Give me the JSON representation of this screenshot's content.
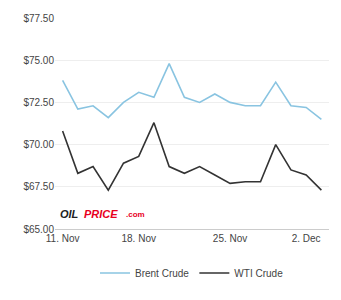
{
  "chart_data": {
    "type": "line",
    "categories": [
      "11. Nov",
      null,
      null,
      null,
      null,
      "18. Nov",
      null,
      null,
      null,
      null,
      null,
      "25. Nov",
      null,
      null,
      null,
      null,
      "2. Dec",
      null
    ],
    "series": [
      {
        "name": "Brent Crude",
        "color": "#89C4E1",
        "values": [
          73.8,
          72.1,
          72.3,
          71.6,
          72.5,
          73.1,
          72.8,
          74.8,
          72.8,
          72.5,
          73.0,
          72.5,
          72.3,
          72.3,
          73.7,
          72.3,
          72.2,
          71.5
        ]
      },
      {
        "name": "WTI Crude",
        "color": "#333333",
        "values": [
          70.8,
          68.3,
          68.7,
          67.3,
          68.9,
          69.3,
          71.3,
          68.7,
          68.3,
          68.7,
          68.2,
          67.7,
          67.8,
          67.8,
          70.0,
          68.5,
          68.2,
          67.3
        ]
      }
    ],
    "ylim": [
      65.0,
      77.5
    ],
    "yticks": [
      {
        "value": 65.0,
        "label": "$65.00"
      },
      {
        "value": 67.5,
        "label": "$67.50"
      },
      {
        "value": 70.0,
        "label": "$70.00"
      },
      {
        "value": 72.5,
        "label": "$72.50"
      },
      {
        "value": 75.0,
        "label": "$75.00"
      },
      {
        "value": 77.5,
        "label": "$77.50"
      }
    ],
    "grid": true,
    "legend": "bottom",
    "annotations": [
      {
        "text": "OIL",
        "color": "#222222"
      },
      {
        "text": "PRICE",
        "color": "#e8001e"
      },
      {
        "text": ".com",
        "color": "#e8001e"
      }
    ]
  }
}
